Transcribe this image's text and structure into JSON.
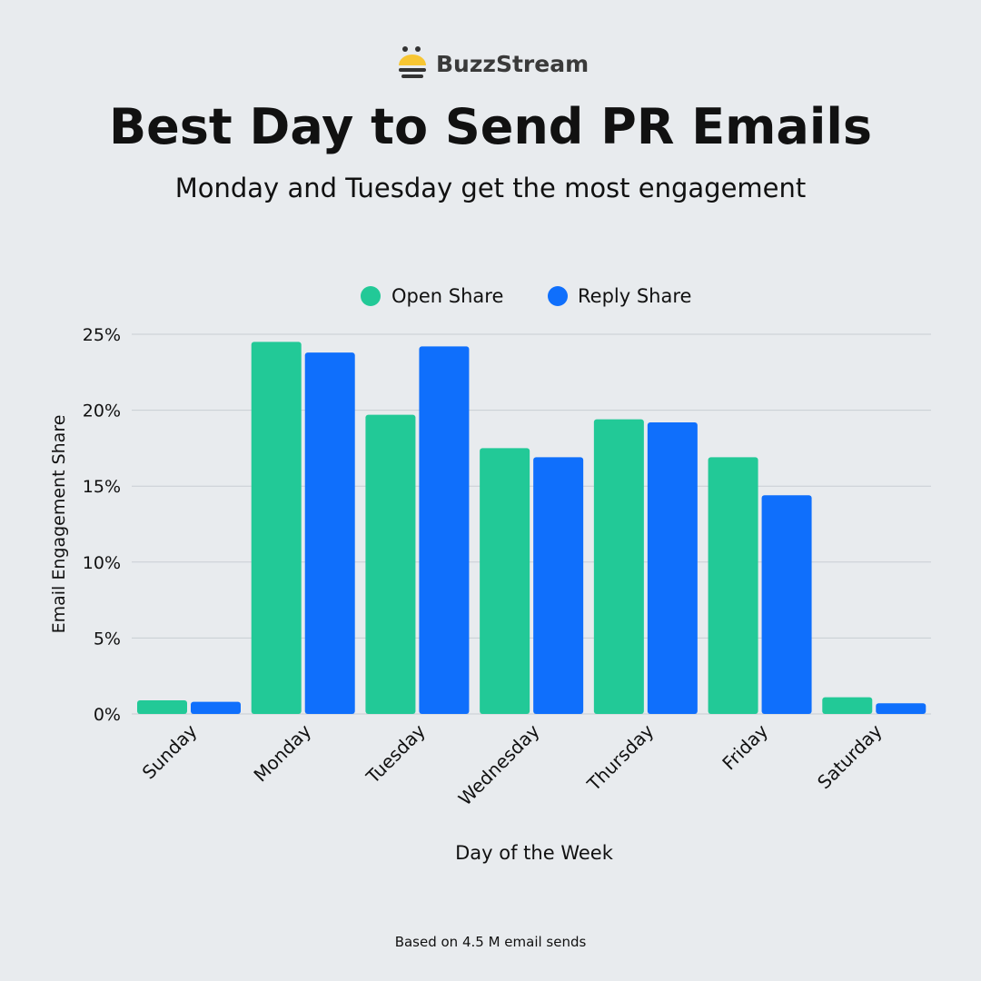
{
  "brand": {
    "name": "BuzzStream"
  },
  "title": "Best Day to Send PR Emails",
  "subtitle": "Monday and Tuesday get the most engagement",
  "footnote": "Based on 4.5 M email sends",
  "colors": {
    "open": "#22c997",
    "reply": "#0f6ffc",
    "grid": "#c9ced3",
    "background": "#e8ebee"
  },
  "chart_data": {
    "type": "bar",
    "categories": [
      "Sunday",
      "Monday",
      "Tuesday",
      "Wednesday",
      "Thursday",
      "Friday",
      "Saturday"
    ],
    "series": [
      {
        "name": "Open Share",
        "values": [
          0.9,
          24.5,
          19.7,
          17.5,
          19.4,
          16.9,
          1.1
        ]
      },
      {
        "name": "Reply Share",
        "values": [
          0.8,
          23.8,
          24.2,
          16.9,
          19.2,
          14.4,
          0.7
        ]
      }
    ],
    "xlabel": "Day of the Week",
    "ylabel": "Email Engagement Share",
    "ylim": [
      0,
      25
    ],
    "yticks": [
      "0%",
      "5%",
      "10%",
      "15%",
      "20%",
      "25%"
    ],
    "grid": true,
    "legend": "top-center"
  }
}
